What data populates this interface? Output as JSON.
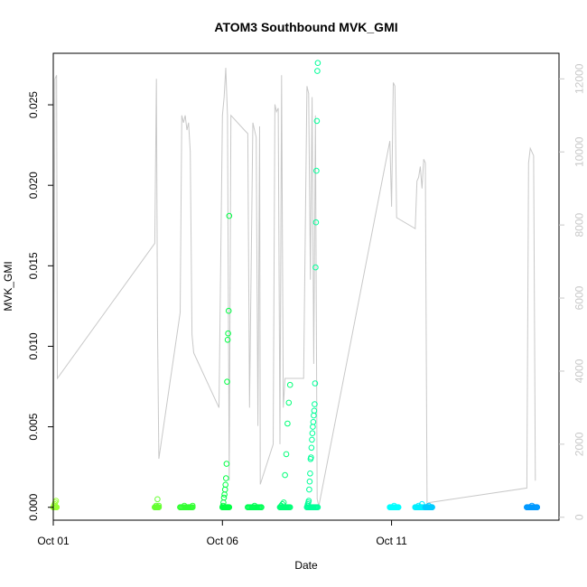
{
  "chart_data": {
    "type": "scatter",
    "title": "ATOM3 Southbound MVK_GMI",
    "xlabel": "Date",
    "ylabel": "MVK_GMI",
    "x_range_days": [
      0.0,
      14.95
    ],
    "x_ticks": [
      {
        "day": 0,
        "label": "Oct 01"
      },
      {
        "day": 5,
        "label": "Oct 06"
      },
      {
        "day": 10,
        "label": "Oct 11"
      }
    ],
    "ylim": [
      -0.0008,
      0.0282
    ],
    "y_ticks": [
      0.0,
      0.005,
      0.01,
      0.015,
      0.02,
      0.025
    ],
    "y_tick_labels": [
      "0.000",
      "0.005",
      "0.010",
      "0.015",
      "0.020",
      "0.025"
    ],
    "y2_range": [
      -80,
      12700
    ],
    "y2_ticks": [
      0,
      2000,
      4000,
      6000,
      8000,
      10000,
      12000
    ],
    "y2_tick_labels": [
      "0",
      "2000",
      "4000",
      "6000",
      "8000",
      "10000",
      "12000"
    ],
    "grid": false,
    "altitude_color": "#c8c8c8",
    "point_groups": [
      {
        "color": "#99ff33",
        "day_start": 0.0,
        "day_end": 0.1,
        "values": [
          0.0,
          0.0001,
          0.0002,
          0.0003,
          0.0004,
          0.0
        ]
      },
      {
        "color": "#66ff33",
        "day_start": 3.0,
        "day_end": 3.12,
        "values": [
          0.0,
          0.0001,
          0.0005,
          0.0001
        ]
      },
      {
        "color": "#33ff33",
        "day_start": 3.75,
        "day_end": 4.12,
        "values": [
          0.0,
          0.0001,
          0.0,
          0.0001
        ]
      },
      {
        "color": "#00ff44",
        "day_start": 5.0,
        "day_end": 5.2,
        "values": [
          0.0,
          0.0001,
          0.0003,
          0.0006,
          0.0008,
          0.0011,
          0.0014,
          0.0018,
          0.0027,
          0.0078,
          0.0104,
          0.0108,
          0.0122,
          0.0181
        ]
      },
      {
        "color": "#00ff55",
        "day_start": 5.75,
        "day_end": 6.15,
        "values": [
          0.0,
          0.0001,
          0.0
        ]
      },
      {
        "color": "#00ff77",
        "day_start": 6.7,
        "day_end": 7.0,
        "values": [
          0.0,
          0.0001,
          0.0002,
          0.0003,
          0.002,
          0.0033,
          0.0052,
          0.0065,
          0.0076
        ]
      },
      {
        "color": "#00ff99",
        "day_start": 7.5,
        "day_end": 7.82,
        "values": [
          0.0,
          0.0001,
          0.0002,
          0.0003,
          0.0004,
          0.0011,
          0.0016,
          0.0021,
          0.003,
          0.0031,
          0.0037,
          0.0042,
          0.0046,
          0.005,
          0.0053,
          0.0057,
          0.006,
          0.0064,
          0.0077,
          0.0149,
          0.0177,
          0.0209,
          0.024,
          0.0271,
          0.0276
        ]
      },
      {
        "color": "#00ffff",
        "day_start": 9.95,
        "day_end": 10.2,
        "values": [
          0.0,
          0.0001,
          0.0
        ]
      },
      {
        "color": "#00eeff",
        "day_start": 10.7,
        "day_end": 11.0,
        "values": [
          0.0,
          0.0001,
          0.0002,
          0.0
        ]
      },
      {
        "color": "#00ccff",
        "day_start": 11.0,
        "day_end": 11.2,
        "values": [
          0.0,
          0.0001,
          0.0
        ]
      },
      {
        "color": "#0099ff",
        "day_start": 14.0,
        "day_end": 14.3,
        "values": [
          0.0,
          0.0001,
          0.0
        ]
      }
    ],
    "altitude_series": [
      [
        0.0,
        0
      ],
      [
        0.02,
        4700
      ],
      [
        0.05,
        12000
      ],
      [
        0.1,
        12100
      ],
      [
        0.12,
        3800
      ],
      [
        3.0,
        7500
      ],
      [
        3.05,
        12000
      ],
      [
        3.08,
        5300
      ],
      [
        3.12,
        1600
      ],
      [
        3.75,
        5600
      ],
      [
        3.8,
        11000
      ],
      [
        3.85,
        10800
      ],
      [
        3.9,
        11000
      ],
      [
        3.95,
        10600
      ],
      [
        4.0,
        10800
      ],
      [
        4.05,
        10000
      ],
      [
        4.1,
        5000
      ],
      [
        4.15,
        4500
      ],
      [
        4.9,
        3000
      ],
      [
        5.0,
        11000
      ],
      [
        5.05,
        11500
      ],
      [
        5.1,
        12300
      ],
      [
        5.15,
        11000
      ],
      [
        5.2,
        1000
      ],
      [
        5.25,
        11000
      ],
      [
        5.65,
        10600
      ],
      [
        5.75,
        10500
      ],
      [
        5.8,
        3000
      ],
      [
        5.9,
        10800
      ],
      [
        6.0,
        10400
      ],
      [
        6.05,
        2500
      ],
      [
        6.1,
        10700
      ],
      [
        6.12,
        900
      ],
      [
        6.5,
        2000
      ],
      [
        6.55,
        11300
      ],
      [
        6.6,
        11100
      ],
      [
        6.65,
        11200
      ],
      [
        6.7,
        2000
      ],
      [
        6.75,
        12100
      ],
      [
        6.8,
        3000
      ],
      [
        6.85,
        3800
      ],
      [
        7.4,
        3800
      ],
      [
        7.5,
        11800
      ],
      [
        7.55,
        11600
      ],
      [
        7.6,
        6500
      ],
      [
        7.65,
        11500
      ],
      [
        7.7,
        4200
      ],
      [
        7.75,
        11000
      ],
      [
        7.8,
        500
      ],
      [
        7.85,
        300
      ],
      [
        9.95,
        10300
      ],
      [
        10.0,
        8500
      ],
      [
        10.05,
        11900
      ],
      [
        10.1,
        11800
      ],
      [
        10.15,
        8200
      ],
      [
        10.7,
        7900
      ],
      [
        10.75,
        9200
      ],
      [
        10.8,
        9300
      ],
      [
        10.85,
        9600
      ],
      [
        10.9,
        9000
      ],
      [
        10.95,
        9800
      ],
      [
        11.0,
        9700
      ],
      [
        11.05,
        300
      ],
      [
        11.1,
        400
      ],
      [
        14.0,
        800
      ],
      [
        14.05,
        9700
      ],
      [
        14.1,
        10100
      ],
      [
        14.15,
        10000
      ],
      [
        14.2,
        9900
      ],
      [
        14.25,
        1000
      ]
    ]
  }
}
